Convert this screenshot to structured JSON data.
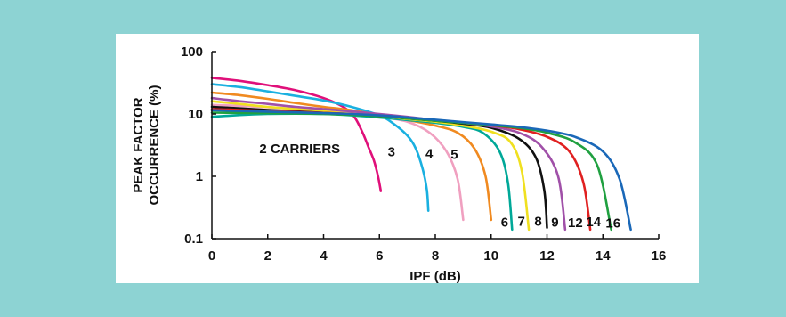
{
  "colors": {
    "background": "#8dd3d3",
    "panel": "#ffffff"
  },
  "chart_data": {
    "type": "line",
    "xlabel": "IPF (dB)",
    "ylabel_lines": [
      "PEAK FACTOR",
      "OCCURRENCE (%)"
    ],
    "x_ticks": [
      0,
      2,
      4,
      6,
      8,
      10,
      12,
      14,
      16
    ],
    "x_tick_labels": [
      "0",
      "2",
      "4",
      "6",
      "8",
      "10",
      "12",
      "14",
      "16"
    ],
    "y_ticks": [
      0.1,
      1,
      10,
      100
    ],
    "y_tick_labels": [
      "0.1",
      "1",
      "10",
      "100"
    ],
    "xlim": [
      0,
      16
    ],
    "ylim": [
      0.1,
      100
    ],
    "y_scale": "log",
    "grid": false,
    "legend": "none",
    "series": [
      {
        "name": "2 CARRIERS",
        "color": "#e0107a",
        "x": [
          0,
          1,
          2,
          3,
          4,
          4.7,
          5.1,
          5.4,
          5.6,
          5.8,
          5.95,
          6.05
        ],
        "y": [
          38,
          34,
          29,
          24,
          18,
          13,
          9,
          5,
          3,
          1.8,
          1,
          0.58
        ]
      },
      {
        "name": "3",
        "color": "#1ab0e0",
        "x": [
          0,
          1,
          2,
          3,
          4,
          5,
          6,
          6.5,
          7,
          7.3,
          7.55,
          7.7,
          7.75
        ],
        "y": [
          30,
          27,
          23,
          19.5,
          16.5,
          13,
          9.5,
          7,
          4.5,
          2.8,
          1.3,
          0.6,
          0.28
        ]
      },
      {
        "name": "4",
        "color": "#f0a0c0",
        "x": [
          0,
          1,
          2,
          3,
          4,
          5,
          6,
          7,
          7.8,
          8.4,
          8.8,
          9.0
        ],
        "y": [
          14,
          13.5,
          12.8,
          12,
          11,
          10.2,
          9,
          7.5,
          5,
          2.5,
          0.9,
          0.2
        ]
      },
      {
        "name": "5",
        "color": "#f08a20",
        "x": [
          0,
          1,
          2,
          3,
          4,
          5,
          6,
          7,
          8,
          8.8,
          9.4,
          9.8,
          10.0
        ],
        "y": [
          22,
          20,
          17.5,
          15,
          13,
          11.5,
          9.5,
          8,
          6.5,
          5,
          2.8,
          1,
          0.2
        ]
      },
      {
        "name": "6",
        "color": "#00a898",
        "x": [
          0,
          1,
          2,
          3,
          4,
          5,
          6,
          7,
          8,
          9,
          9.7,
          10.3,
          10.6,
          10.75
        ],
        "y": [
          9,
          9.6,
          10,
          10.1,
          10,
          9.5,
          8.8,
          8,
          7.2,
          6.2,
          5,
          2.5,
          0.8,
          0.14
        ]
      },
      {
        "name": "7",
        "color": "#f0e020",
        "x": [
          0,
          1,
          2,
          3,
          4,
          5,
          6,
          7,
          8,
          9,
          10,
          10.7,
          11.1,
          11.35
        ],
        "y": [
          16,
          14.5,
          13,
          12,
          11,
          10,
          9.2,
          8.3,
          7.5,
          6.5,
          5.2,
          3.5,
          1.2,
          0.14
        ]
      },
      {
        "name": "8",
        "color": "#111111",
        "x": [
          0,
          1,
          2,
          3,
          4,
          5,
          6,
          7,
          8,
          9,
          10,
          11,
          11.6,
          11.9,
          12.0
        ],
        "y": [
          13,
          12.3,
          11.6,
          11,
          10.4,
          9.8,
          9.2,
          8.5,
          7.8,
          7,
          6,
          4,
          2,
          0.6,
          0.15
        ]
      },
      {
        "name": "9",
        "color": "#a050a8",
        "x": [
          0,
          1,
          2,
          3,
          4,
          5,
          6,
          7,
          8,
          9,
          10,
          11,
          11.8,
          12.4,
          12.65
        ],
        "y": [
          18,
          16,
          14.5,
          13,
          12,
          11,
          10,
          9,
          8,
          7.2,
          6.3,
          5,
          3,
          1,
          0.14
        ]
      },
      {
        "name": "12",
        "color": "#e02020",
        "x": [
          0,
          1,
          2,
          3,
          4,
          5,
          6,
          7,
          8,
          9,
          10,
          11,
          12,
          12.8,
          13.3,
          13.55
        ],
        "y": [
          12,
          11.6,
          11.2,
          10.8,
          10.4,
          10,
          9.4,
          8.7,
          8,
          7.3,
          6.6,
          5.7,
          4.3,
          2.5,
          0.8,
          0.14
        ]
      },
      {
        "name": "14",
        "color": "#20a040",
        "x": [
          0,
          1,
          2,
          3,
          4,
          5,
          6,
          7,
          8,
          9,
          10,
          11,
          12,
          13,
          13.8,
          14.3
        ],
        "y": [
          10.5,
          10.4,
          10.3,
          10.2,
          10,
          9.7,
          9.2,
          8.5,
          7.8,
          7.2,
          6.6,
          6,
          5,
          3.5,
          1.5,
          0.14
        ]
      },
      {
        "name": "16",
        "color": "#1a68b8",
        "x": [
          0,
          1,
          2,
          3,
          4,
          5,
          6,
          7,
          8,
          9,
          10,
          11,
          12,
          13,
          14,
          14.6,
          15.0
        ],
        "y": [
          11.5,
          11.2,
          10.9,
          10.6,
          10.3,
          10,
          9.5,
          8.8,
          8.1,
          7.4,
          6.8,
          6.2,
          5.4,
          4.3,
          2.5,
          0.9,
          0.14
        ]
      }
    ],
    "annotations": [
      {
        "text": "2 CARRIERS",
        "x": 1.7,
        "y": 2.35
      },
      {
        "text": "3",
        "x": 6.3,
        "y": 2.1
      },
      {
        "text": "4",
        "x": 7.65,
        "y": 1.95
      },
      {
        "text": "5",
        "x": 8.55,
        "y": 1.9
      },
      {
        "text": "6",
        "x": 10.35,
        "y": 0.155
      },
      {
        "text": "7",
        "x": 10.95,
        "y": 0.16
      },
      {
        "text": "8",
        "x": 11.55,
        "y": 0.16
      },
      {
        "text": "9",
        "x": 12.15,
        "y": 0.155
      },
      {
        "text": "12",
        "x": 12.75,
        "y": 0.153
      },
      {
        "text": "14",
        "x": 13.4,
        "y": 0.158
      },
      {
        "text": "16",
        "x": 14.1,
        "y": 0.152
      }
    ]
  }
}
